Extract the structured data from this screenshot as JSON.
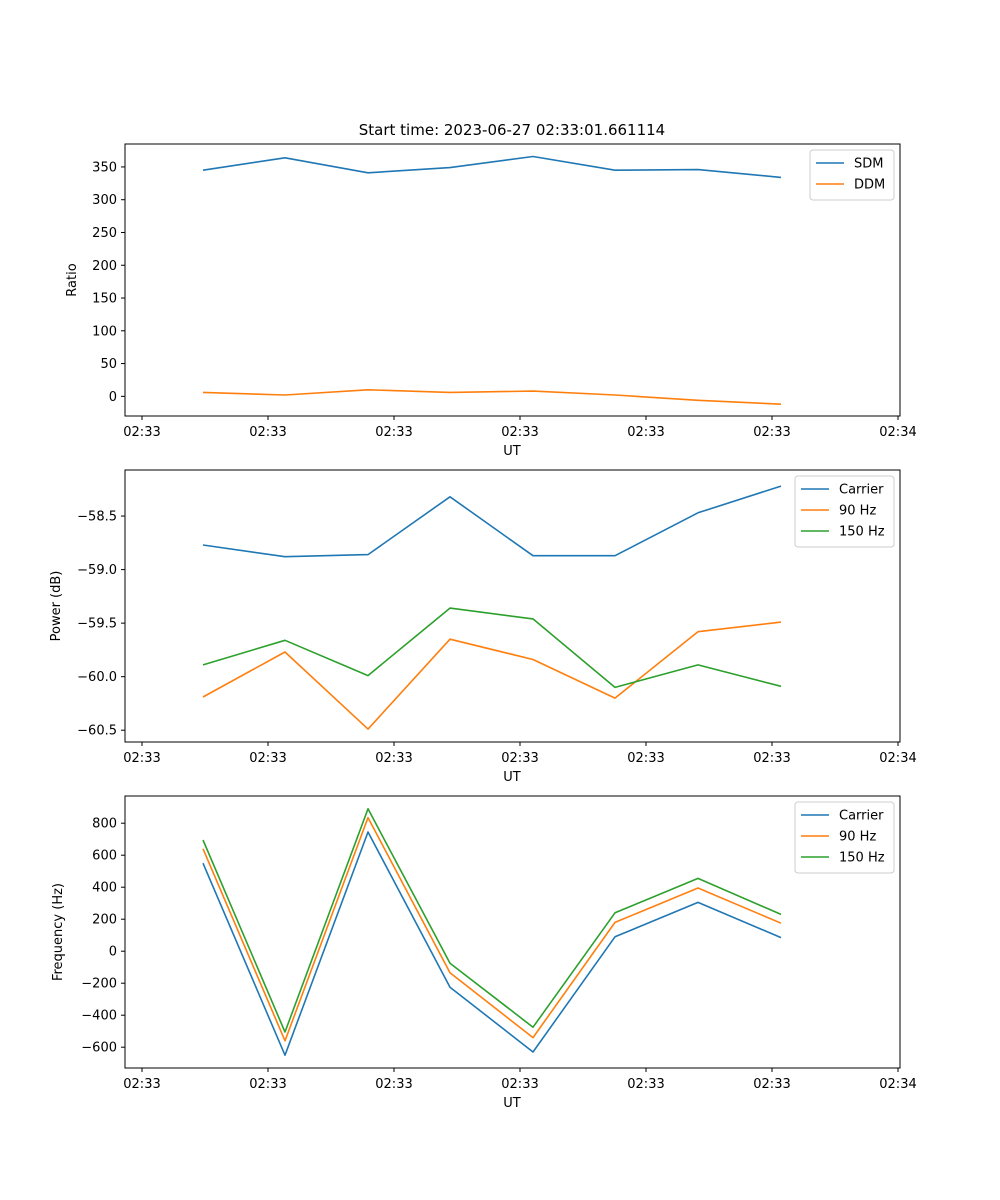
{
  "figure_title": "Start time: 2023-06-27 02:33:01.661114",
  "chart_data": [
    {
      "type": "line",
      "xlabel": "UT",
      "ylabel": "Ratio",
      "x_tick_labels": [
        "02:33",
        "02:33",
        "02:33",
        "02:33",
        "02:33",
        "02:33",
        "02:34"
      ],
      "y_ticks": [
        0,
        50,
        100,
        150,
        200,
        250,
        300,
        350
      ],
      "ylim": [
        -30,
        385
      ],
      "legend_position": "top-right",
      "series": [
        {
          "name": "SDM",
          "color": "#1f77b4",
          "values": [
            345,
            364,
            341,
            349,
            366,
            345,
            346,
            334
          ]
        },
        {
          "name": "DDM",
          "color": "#ff7f0e",
          "values": [
            6,
            2,
            10,
            6,
            8,
            2,
            -6,
            -12
          ]
        }
      ]
    },
    {
      "type": "line",
      "xlabel": "UT",
      "ylabel": "Power (dB)",
      "x_tick_labels": [
        "02:33",
        "02:33",
        "02:33",
        "02:33",
        "02:33",
        "02:33",
        "02:34"
      ],
      "y_ticks": [
        -58.5,
        -59.0,
        -59.5,
        -60.0,
        -60.5
      ],
      "y_tick_labels": [
        "−58.5",
        "−59.0",
        "−59.5",
        "−60.0",
        "−60.5"
      ],
      "ylim": [
        -60.61,
        -58.07
      ],
      "legend_position": "top-right",
      "series": [
        {
          "name": "Carrier",
          "color": "#1f77b4",
          "values": [
            -58.77,
            -58.88,
            -58.86,
            -58.32,
            -58.87,
            -58.87,
            -58.47,
            -58.22
          ]
        },
        {
          "name": "90 Hz",
          "color": "#ff7f0e",
          "values": [
            -60.19,
            -59.77,
            -60.49,
            -59.65,
            -59.84,
            -60.2,
            -59.58,
            -59.49
          ]
        },
        {
          "name": "150 Hz",
          "color": "#2ca02c",
          "values": [
            -59.89,
            -59.66,
            -59.99,
            -59.36,
            -59.46,
            -60.1,
            -59.89,
            -60.09
          ]
        }
      ]
    },
    {
      "type": "line",
      "xlabel": "UT",
      "ylabel": "Frequency (Hz)",
      "x_tick_labels": [
        "02:33",
        "02:33",
        "02:33",
        "02:33",
        "02:33",
        "02:33",
        "02:34"
      ],
      "y_ticks": [
        800,
        600,
        400,
        200,
        0,
        -200,
        -400,
        -600
      ],
      "y_tick_labels": [
        "800",
        "600",
        "400",
        "200",
        "0",
        "−200",
        "−400",
        "−600"
      ],
      "ylim": [
        -730,
        970
      ],
      "legend_position": "top-right",
      "series": [
        {
          "name": "Carrier",
          "color": "#1f77b4",
          "values": [
            550,
            -650,
            745,
            -225,
            -630,
            90,
            305,
            85
          ]
        },
        {
          "name": "90 Hz",
          "color": "#ff7f0e",
          "values": [
            640,
            -560,
            835,
            -135,
            -540,
            180,
            395,
            175
          ]
        },
        {
          "name": "150 Hz",
          "color": "#2ca02c",
          "values": [
            695,
            -505,
            890,
            -75,
            -475,
            240,
            455,
            230
          ]
        }
      ]
    }
  ]
}
